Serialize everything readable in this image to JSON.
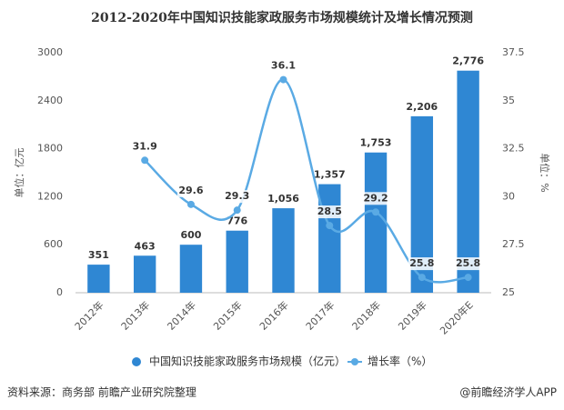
{
  "chart_data": {
    "type": "bar_line",
    "title": "2012-2020年中国知识技能家政服务市场规模统计及增长情况预测",
    "categories": [
      "2012年",
      "2013年",
      "2014年",
      "2015年",
      "2016年",
      "2017年",
      "2018年",
      "2019年",
      "2020年E"
    ],
    "series": [
      {
        "name": "中国知识技能家政服务市场规模（亿元）",
        "type": "bar",
        "color": "#2f87d3",
        "values": [
          351,
          463,
          600,
          776,
          1056,
          1357,
          1753,
          2206,
          2776
        ],
        "value_labels": [
          "351",
          "463",
          "600",
          "776",
          "1,056",
          "1,357",
          "1,753",
          "2,206",
          "2,776"
        ]
      },
      {
        "name": "增长率（%）",
        "type": "line",
        "axis": "y2",
        "color": "#5aaae4",
        "values": [
          null,
          31.9,
          29.6,
          29.3,
          36.1,
          28.5,
          29.2,
          25.8,
          25.8
        ]
      }
    ],
    "ylabel": "单位：亿元",
    "y2label": "单位：%",
    "ylim": [
      0,
      3000
    ],
    "yticks": [
      0,
      600,
      1200,
      1800,
      2400,
      3000
    ],
    "y2lim": [
      25,
      37.5
    ],
    "y2ticks": [
      25,
      27.5,
      30,
      32.5,
      35,
      37.5
    ],
    "source": "资料来源：商务部 前瞻产业研究院整理",
    "credit": "@前瞻经济学人APP"
  }
}
